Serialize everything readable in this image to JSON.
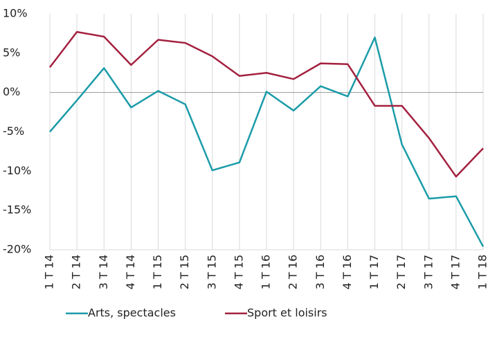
{
  "chart_data": {
    "type": "line",
    "categories": [
      "1 T 14",
      "2 T 14",
      "3 T 14",
      "4 T 14",
      "1 T 15",
      "2 T 15",
      "3 T 15",
      "4 T 15",
      "1 T 16",
      "2 T 16",
      "3 T 16",
      "4 T 16",
      "1 T 17",
      "2 T 17",
      "3 T 17",
      "4 T 17",
      "1 T 18"
    ],
    "series": [
      {
        "name": "Arts, spectacles",
        "color": "#1a9ba8",
        "values": [
          -5.0,
          -1.0,
          3.1,
          -1.9,
          0.2,
          -1.5,
          -9.9,
          -8.9,
          0.1,
          -2.3,
          0.8,
          -0.5,
          7.0,
          -6.6,
          -13.5,
          -13.2,
          -19.6
        ]
      },
      {
        "name": "Sport et loisirs",
        "color": "#a3203f",
        "values": [
          3.2,
          7.7,
          7.1,
          3.5,
          6.7,
          6.3,
          4.6,
          2.1,
          2.5,
          1.7,
          3.7,
          3.6,
          -1.7,
          -1.7,
          -5.8,
          -10.7,
          -7.1
        ]
      }
    ],
    "ylim": [
      -20,
      10
    ],
    "yticks": [
      {
        "value": -20,
        "label": "-20%"
      },
      {
        "value": -15,
        "label": "-15%"
      },
      {
        "value": -10,
        "label": "-10%"
      },
      {
        "value": -5,
        "label": "-5%"
      },
      {
        "value": 0,
        "label": "0%"
      },
      {
        "value": 5,
        "label": "5%"
      },
      {
        "value": 10,
        "label": "10%"
      }
    ],
    "grid": "x"
  }
}
